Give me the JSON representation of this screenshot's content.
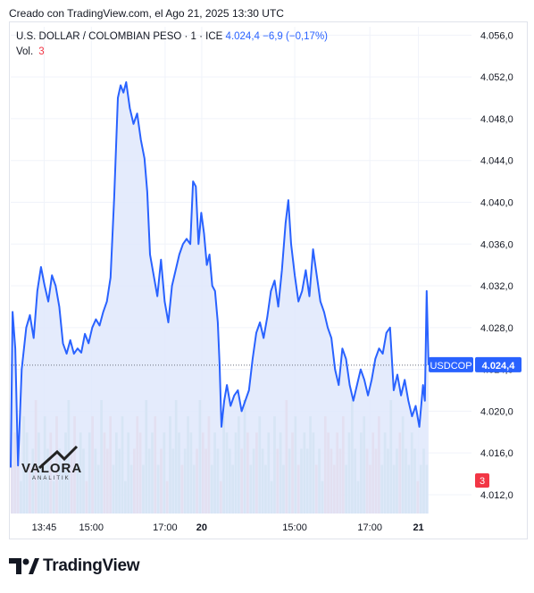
{
  "header": {
    "caption": "Creado con TradingView.com, el Ago 21, 2025 13:30 UTC"
  },
  "legend": {
    "symbol": "U.S. DOLLAR / COLOMBIAN PESO · 1 · ICE",
    "last": "4.024,4",
    "change": "−6,9 (−0,17%)",
    "volume_label": "Vol.",
    "volume_value": "3"
  },
  "watermark": {
    "name": "VALORA",
    "sub": "ANALITIK"
  },
  "brand": {
    "name": "TradingView"
  },
  "colors": {
    "line": "#2962ff",
    "area_fill": "#dfe7fb",
    "volume_up": "#a8d8d2",
    "volume_down": "#f4b7b4",
    "price_label_bg": "#2962ff",
    "volume_label_bg": "#f23645",
    "grid": "#f0f3fa",
    "axis_text": "#131722"
  },
  "chart_data": {
    "type": "area",
    "title": "",
    "symbol_label": "USDCOP",
    "last_price_label": "4.024,4",
    "last_volume_label": "3",
    "y_ticks": [
      4012.0,
      4016.0,
      4020.0,
      4024.0,
      4028.0,
      4032.0,
      4036.0,
      4040.0,
      4044.0,
      4048.0,
      4052.0,
      4056.0
    ],
    "y_tick_labels": [
      "4.012,0",
      "4.016,0",
      "4.020,0",
      "4.024,0",
      "4.028,0",
      "4.032,0",
      "4.036,0",
      "4.040,0",
      "4.044,0",
      "4.048,0",
      "4.052,0",
      "4.056,0"
    ],
    "ylim": [
      4010.2,
      4056.8
    ],
    "xlim": [
      0,
      1
    ],
    "x_ticks": [
      {
        "t": 0.073,
        "label": "13:45",
        "bold": false
      },
      {
        "t": 0.176,
        "label": "15:00",
        "bold": false
      },
      {
        "t": 0.337,
        "label": "17:00",
        "bold": false
      },
      {
        "t": 0.417,
        "label": "20",
        "bold": true
      },
      {
        "t": 0.62,
        "label": "15:00",
        "bold": false
      },
      {
        "t": 0.784,
        "label": "17:00",
        "bold": false
      },
      {
        "t": 0.89,
        "label": "21",
        "bold": true
      }
    ],
    "reference_price": 4024.4,
    "series": [
      {
        "values": [
          [
            0.0,
            4014.6
          ],
          [
            0.004,
            4029.5
          ],
          [
            0.01,
            4026.0
          ],
          [
            0.016,
            4014.8
          ],
          [
            0.024,
            4024.0
          ],
          [
            0.034,
            4028.0
          ],
          [
            0.042,
            4029.2
          ],
          [
            0.05,
            4027.0
          ],
          [
            0.058,
            4031.5
          ],
          [
            0.066,
            4033.8
          ],
          [
            0.074,
            4032.0
          ],
          [
            0.082,
            4030.5
          ],
          [
            0.09,
            4033.0
          ],
          [
            0.098,
            4032.0
          ],
          [
            0.106,
            4030.0
          ],
          [
            0.114,
            4026.5
          ],
          [
            0.122,
            4025.5
          ],
          [
            0.13,
            4026.8
          ],
          [
            0.138,
            4025.5
          ],
          [
            0.146,
            4026.0
          ],
          [
            0.154,
            4025.6
          ],
          [
            0.162,
            4027.4
          ],
          [
            0.17,
            4026.5
          ],
          [
            0.178,
            4028.0
          ],
          [
            0.186,
            4028.8
          ],
          [
            0.194,
            4028.2
          ],
          [
            0.202,
            4029.5
          ],
          [
            0.21,
            4030.5
          ],
          [
            0.218,
            4032.8
          ],
          [
            0.226,
            4040.5
          ],
          [
            0.234,
            4050.0
          ],
          [
            0.24,
            4051.2
          ],
          [
            0.246,
            4050.5
          ],
          [
            0.252,
            4051.5
          ],
          [
            0.26,
            4049.0
          ],
          [
            0.268,
            4047.5
          ],
          [
            0.276,
            4048.5
          ],
          [
            0.284,
            4046.0
          ],
          [
            0.292,
            4044.2
          ],
          [
            0.298,
            4041.0
          ],
          [
            0.304,
            4035.0
          ],
          [
            0.312,
            4033.0
          ],
          [
            0.32,
            4031.0
          ],
          [
            0.328,
            4034.5
          ],
          [
            0.336,
            4030.5
          ],
          [
            0.344,
            4028.5
          ],
          [
            0.352,
            4032.0
          ],
          [
            0.36,
            4033.5
          ],
          [
            0.368,
            4035.0
          ],
          [
            0.376,
            4036.0
          ],
          [
            0.384,
            4036.5
          ],
          [
            0.392,
            4036.0
          ],
          [
            0.398,
            4042.0
          ],
          [
            0.404,
            4041.5
          ],
          [
            0.41,
            4036.0
          ],
          [
            0.416,
            4039.0
          ],
          [
            0.422,
            4037.0
          ],
          [
            0.428,
            4034.0
          ],
          [
            0.434,
            4035.0
          ],
          [
            0.44,
            4032.0
          ],
          [
            0.446,
            4031.5
          ],
          [
            0.452,
            4028.5
          ],
          [
            0.456,
            4024.5
          ],
          [
            0.46,
            4018.5
          ],
          [
            0.466,
            4021.0
          ],
          [
            0.472,
            4022.5
          ],
          [
            0.48,
            4020.5
          ],
          [
            0.488,
            4021.5
          ],
          [
            0.496,
            4022.0
          ],
          [
            0.504,
            4020.0
          ],
          [
            0.512,
            4021.0
          ],
          [
            0.52,
            4022.0
          ],
          [
            0.528,
            4025.0
          ],
          [
            0.536,
            4027.5
          ],
          [
            0.544,
            4028.5
          ],
          [
            0.552,
            4027.0
          ],
          [
            0.56,
            4029.0
          ],
          [
            0.568,
            4031.5
          ],
          [
            0.576,
            4032.5
          ],
          [
            0.584,
            4030.0
          ],
          [
            0.592,
            4033.5
          ],
          [
            0.6,
            4038.0
          ],
          [
            0.606,
            4040.2
          ],
          [
            0.612,
            4036.0
          ],
          [
            0.62,
            4033.0
          ],
          [
            0.628,
            4030.5
          ],
          [
            0.636,
            4031.5
          ],
          [
            0.644,
            4033.5
          ],
          [
            0.652,
            4031.0
          ],
          [
            0.66,
            4035.5
          ],
          [
            0.668,
            4033.0
          ],
          [
            0.676,
            4030.5
          ],
          [
            0.684,
            4029.5
          ],
          [
            0.692,
            4028.0
          ],
          [
            0.7,
            4027.0
          ],
          [
            0.708,
            4024.0
          ],
          [
            0.716,
            4022.5
          ],
          [
            0.724,
            4026.0
          ],
          [
            0.732,
            4025.0
          ],
          [
            0.74,
            4022.5
          ],
          [
            0.748,
            4021.0
          ],
          [
            0.756,
            4022.5
          ],
          [
            0.764,
            4024.0
          ],
          [
            0.772,
            4023.0
          ],
          [
            0.78,
            4021.5
          ],
          [
            0.788,
            4023.0
          ],
          [
            0.796,
            4025.0
          ],
          [
            0.804,
            4026.0
          ],
          [
            0.812,
            4025.5
          ],
          [
            0.82,
            4027.5
          ],
          [
            0.828,
            4028.0
          ],
          [
            0.836,
            4022.0
          ],
          [
            0.844,
            4023.5
          ],
          [
            0.852,
            4021.5
          ],
          [
            0.86,
            4023.0
          ],
          [
            0.868,
            4021.0
          ],
          [
            0.876,
            4019.5
          ],
          [
            0.884,
            4020.5
          ],
          [
            0.892,
            4018.5
          ],
          [
            0.9,
            4022.5
          ],
          [
            0.904,
            4021.0
          ],
          [
            0.908,
            4031.5
          ],
          [
            0.912,
            4024.4
          ]
        ]
      }
    ],
    "volume": [
      3,
      5,
      4,
      2,
      6,
      5,
      3,
      4,
      7,
      5,
      3,
      6,
      4,
      5,
      2,
      6,
      4,
      3,
      5,
      7,
      4,
      6,
      3,
      5,
      4,
      2,
      5,
      6,
      4,
      3,
      7,
      5,
      4,
      6,
      3,
      5,
      4,
      6,
      2,
      5,
      3,
      4,
      6,
      5,
      3,
      7,
      4,
      5,
      6,
      3,
      4,
      5,
      2,
      6,
      4,
      7,
      5,
      3,
      4,
      6,
      5,
      3,
      4,
      7,
      5,
      4,
      6,
      3,
      5,
      4,
      2,
      6,
      5,
      4,
      3,
      5,
      6,
      4,
      7,
      5,
      3,
      4,
      5,
      6,
      4,
      3,
      5,
      2,
      6,
      4,
      5,
      3,
      7,
      4,
      5,
      6,
      3,
      4,
      5,
      4,
      6,
      5,
      3,
      4,
      2,
      6,
      5,
      4,
      3,
      5,
      4,
      6,
      3,
      5,
      7,
      4,
      2,
      5,
      6,
      4,
      3,
      5,
      4,
      6,
      3,
      5,
      4,
      7,
      3,
      4,
      5,
      6,
      4,
      3,
      5,
      4,
      2,
      3,
      4,
      3
    ]
  }
}
